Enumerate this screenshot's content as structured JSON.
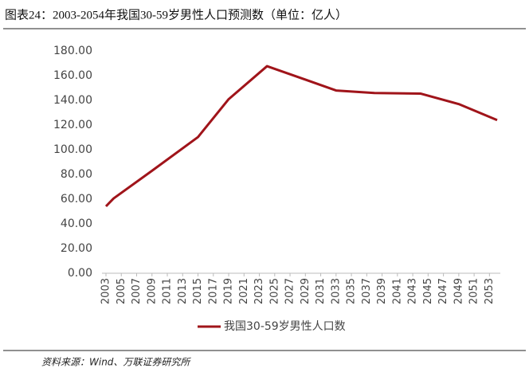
{
  "title": "图表24：2003-2054年我国30-59岁男性人口预测数（单位：亿人）",
  "source": "资料来源：Wind、万联证券研究所",
  "chart_data": {
    "type": "line",
    "x": [
      2003,
      2004,
      2009,
      2015,
      2019,
      2024,
      2028,
      2033,
      2038,
      2044,
      2049,
      2054
    ],
    "series": [
      {
        "name": "我国30-59岁男性人口数",
        "color": "#a0141a",
        "values": [
          54.2,
          60.6,
          83,
          110.3,
          141,
          167.7,
          159,
          148,
          146,
          145.5,
          137,
          124
        ]
      }
    ],
    "xlim": [
      2003,
      2054
    ],
    "xticks": [
      2003,
      2005,
      2007,
      2009,
      2011,
      2013,
      2015,
      2017,
      2019,
      2021,
      2023,
      2025,
      2027,
      2029,
      2031,
      2033,
      2035,
      2037,
      2039,
      2041,
      2043,
      2045,
      2047,
      2049,
      2051,
      2053
    ],
    "ylim": [
      0,
      180
    ],
    "yticks": [
      {
        "value": 0,
        "label": "0.00"
      },
      {
        "value": 20,
        "label": "20.00"
      },
      {
        "value": 40,
        "label": "40.00"
      },
      {
        "value": 60,
        "label": "60.00"
      },
      {
        "value": 80,
        "label": "80.00"
      },
      {
        "value": 100,
        "label": "100.00"
      },
      {
        "value": 120,
        "label": "120.00"
      },
      {
        "value": 140,
        "label": "140.00"
      },
      {
        "value": 160,
        "label": "160.00"
      },
      {
        "value": 180,
        "label": "180.00"
      }
    ],
    "grid": false,
    "legend": "bottom"
  }
}
